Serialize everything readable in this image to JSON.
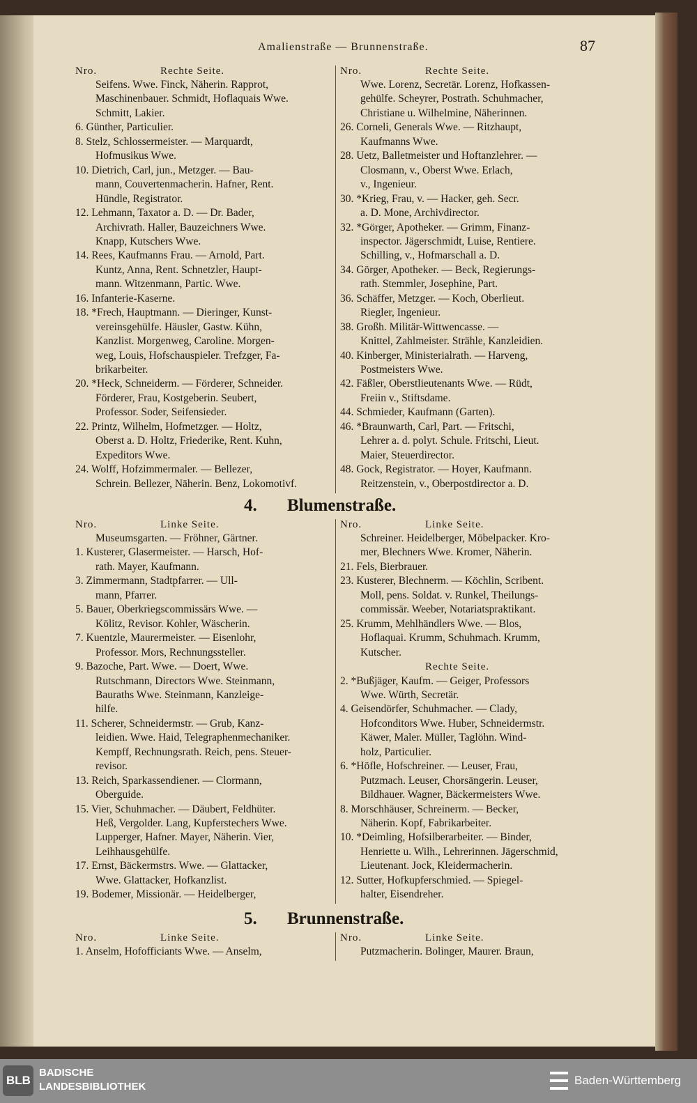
{
  "header": {
    "running_title": "Amalienstraße — Brunnenstraße.",
    "page_number": "87"
  },
  "sections": [
    {
      "blocks": [
        {
          "nro": "Nro.",
          "side": "Rechte Seite.",
          "lines": [
            "Seifens. Wwe. Finck, Näherin. Rapprot,",
            "Maschinenbauer. Schmidt, Hoflaquais Wwe.",
            "Schmitt, Lakier.",
            "6. Günther, Particulier.",
            "8. Stelz, Schlossermeister. — Marquardt,",
            "Hofmusikus Wwe.",
            "10. Dietrich, Carl, jun., Metzger. — Bau-",
            "mann, Couvertenmacherin. Hafner, Rent.",
            "Hündle, Registrator.",
            "12. Lehmann, Taxator a. D. — Dr. Bader,",
            "Archivrath. Haller, Bauzeichners Wwe.",
            "Knapp, Kutschers Wwe.",
            "14. Rees, Kaufmanns Frau. — Arnold, Part.",
            "Kuntz, Anna, Rent. Schnetzler, Haupt-",
            "mann. Witzenmann, Partic. Wwe.",
            "16. Infanterie-Kaserne.",
            "18. *Frech, Hauptmann. — Dieringer, Kunst-",
            "vereinsgehülfe. Häusler, Gastw. Kühn,",
            "Kanzlist. Morgenweg, Caroline. Morgen-",
            "weg, Louis, Hofschauspieler. Trefzger, Fa-",
            "brikarbeiter.",
            "20. *Heck, Schneiderm. — Förderer, Schneider.",
            "Förderer, Frau, Kostgeberin. Seubert,",
            "Professor. Soder, Seifensieder.",
            "22. Printz, Wilhelm, Hofmetzger. — Holtz,",
            "Oberst a. D. Holtz, Friederike, Rent. Kuhn,",
            "Expeditors Wwe.",
            "24. Wolff, Hofzimmermaler. — Bellezer,",
            "Schrein. Bellezer, Näherin. Benz, Lokomotivf."
          ]
        },
        {
          "nro": "Nro.",
          "side": "Rechte Seite.",
          "lines": [
            "Wwe. Lorenz, Secretär. Lorenz, Hofkassen-",
            "gehülfe. Scheyrer, Postrath. Schuhmacher,",
            "Christiane u. Wilhelmine, Näherinnen.",
            "26. Corneli, Generals Wwe. — Ritzhaupt,",
            "Kaufmanns Wwe.",
            "28. Uetz, Balletmeister und Hoftanzlehrer. —",
            "Closmann, v., Oberst Wwe. Erlach,",
            "v., Ingenieur.",
            "30. *Krieg, Frau, v. — Hacker, geh. Secr.",
            "a. D. Mone, Archivdirector.",
            "32. *Görger, Apotheker. — Grimm, Finanz-",
            "inspector. Jägerschmidt, Luise, Rentiere.",
            "Schilling, v., Hofmarschall a. D.",
            "34. Görger, Apotheker. — Beck, Regierungs-",
            "rath. Stemmler, Josephine, Part.",
            "36. Schäffer, Metzger. — Koch, Oberlieut.",
            "Riegler, Ingenieur.",
            "38. Großh. Militär-Wittwencasse. —",
            "Knittel, Zahlmeister. Strähle, Kanzleidien.",
            "40. Kinberger, Ministerialrath. — Harveng,",
            "Postmeisters Wwe.",
            "42. Fäßler, Oberstlieutenants Wwe. — Rüdt,",
            "Freiin v., Stiftsdame.",
            "44. Schmieder, Kaufmann (Garten).",
            "46. *Braunwarth, Carl, Part. — Fritschi,",
            "Lehrer a. d. polyt. Schule. Fritschi, Lieut.",
            "Maier, Steuerdirector.",
            "48. Gock, Registrator. — Hoyer, Kaufmann.",
            "Reitzenstein, v., Oberpostdirector a. D."
          ]
        }
      ]
    },
    {
      "number": "4.",
      "title": "Blumenstraße.",
      "blocks": [
        {
          "nro": "Nro.",
          "side": "Linke Seite.",
          "lines": [
            "Museumsgarten. — Fröhner, Gärtner.",
            "1. Kusterer, Glasermeister. — Harsch, Hof-",
            "rath. Mayer, Kaufmann.",
            "3. Zimmermann, Stadtpfarrer. — Ull-",
            "mann, Pfarrer.",
            "5. Bauer, Oberkriegscommissärs Wwe. —",
            "Kölitz, Revisor. Kohler, Wäscherin.",
            "7. Kuentzle, Maurermeister. — Eisenlohr,",
            "Professor. Mors, Rechnungssteller.",
            "9. Bazoche, Part. Wwe. — Doert, Wwe.",
            "Rutschmann, Directors Wwe. Steinmann,",
            "Bauraths Wwe. Steinmann, Kanzleige-",
            "hilfe.",
            "11. Scherer, Schneidermstr. — Grub, Kanz-",
            "leidien. Wwe. Haid, Telegraphenmechaniker.",
            "Kempff, Rechnungsrath. Reich, pens. Steuer-",
            "revisor.",
            "13. Reich, Sparkassendiener. — Clormann,",
            "Oberguide.",
            "15. Vier, Schuhmacher. — Däubert, Feldhüter.",
            "Heß, Vergolder. Lang, Kupferstechers Wwe.",
            "Lupperger, Hafner. Mayer, Näherin. Vier,",
            "Leihhausgehülfe.",
            "17. Ernst, Bäckermstrs. Wwe. — Glattacker,",
            "Wwe. Glattacker, Hofkanzlist.",
            "19. Bodemer, Missionär. — Heidelberger,"
          ]
        },
        {
          "nro": "Nro.",
          "side": "Linke Seite.",
          "lines": [
            "Schreiner. Heidelberger, Möbelpacker. Kro-",
            "mer, Blechners Wwe. Kromer, Näherin.",
            "21. Fels, Bierbrauer.",
            "23. Kusterer, Blechnerm. — Köchlin, Scribent.",
            "Moll, pens. Soldat. v. Runkel, Theilungs-",
            "commissär. Weeber, Notariatspraktikant.",
            "25. Krumm, Mehlhändlers Wwe. — Blos,",
            "Hoflaquai. Krumm, Schuhmach. Krumm,",
            "Kutscher.",
            "Rechte Seite.",
            "2. *Bußjäger, Kaufm. — Geiger, Professors",
            "Wwe. Würth, Secretär.",
            "4. Geisendörfer, Schuhmacher. — Clady,",
            "Hofconditors Wwe. Huber, Schneidermstr.",
            "Käwer, Maler. Müller, Taglöhn. Wind-",
            "holz, Particulier.",
            "6. *Höfle, Hofschreiner. — Leuser, Frau,",
            "Putzmach. Leuser, Chorsängerin. Leuser,",
            "Bildhauer. Wagner, Bäckermeisters Wwe.",
            "8. Morschhäuser, Schreinerm. — Becker,",
            "Näherin. Kopf, Fabrikarbeiter.",
            "10. *Deimling, Hofsilberarbeiter. — Binder,",
            "Henriette u. Wilh., Lehrerinnen. Jägerschmid,",
            "Lieutenant. Jock, Kleidermacherin.",
            "12. Sutter, Hofkupferschmied. — Spiegel-",
            "halter, Eisendreher."
          ]
        }
      ]
    },
    {
      "number": "5.",
      "title": "Brunnenstraße.",
      "blocks": [
        {
          "nro": "Nro.",
          "side": "Linke Seite.",
          "lines": [
            "1. Anselm, Hofofficiants Wwe. — Anselm,"
          ]
        },
        {
          "nro": "Nro.",
          "side": "Linke Seite.",
          "lines": [
            "Putzmacherin. Bolinger, Maurer. Braun,"
          ]
        }
      ]
    }
  ],
  "footer": {
    "logo": "BLB",
    "library_line1": "BADISCHE",
    "library_line2": "LANDESBIBLIOTHEK",
    "state": "Baden-Württemberg"
  }
}
